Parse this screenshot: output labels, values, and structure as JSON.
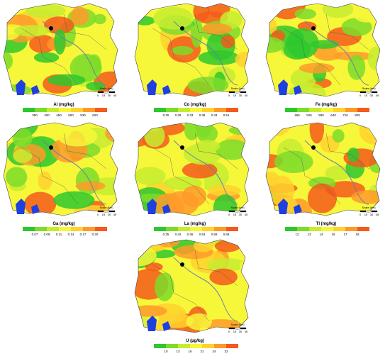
{
  "panels": [
    {
      "legend": "Al (mg/kg)",
      "ticks": [
        "350",
        "400",
        "450",
        "500",
        "530",
        "620"
      ],
      "scale_title": "Scale (km)",
      "scale_ticks": [
        "0",
        "15",
        "30",
        "45"
      ]
    },
    {
      "legend": "Co (mg/kg)",
      "ticks": [
        "0.25",
        "0.29",
        "0.33",
        "0.38",
        "0.43",
        "0.51"
      ],
      "scale_title": "Scale (km)",
      "scale_ticks": [
        "0",
        "15",
        "30",
        "45"
      ]
    },
    {
      "legend": "Fe (mg/kg)",
      "ticks": [
        "465",
        "525",
        "580",
        "640",
        "710",
        "825"
      ],
      "scale_title": "Scale (km)",
      "scale_ticks": [
        "0",
        "15",
        "30",
        "45"
      ]
    },
    {
      "legend": "Ga (mg/kg)",
      "ticks": [
        "0.07",
        "0.09",
        "0.11",
        "0.14",
        "0.17",
        "0.20"
      ],
      "scale_title": "Scale (km)",
      "scale_ticks": [
        "0",
        "15",
        "30",
        "45"
      ]
    },
    {
      "legend": "La (mg/kg)",
      "ticks": [
        "0.35",
        "0.42",
        "0.46",
        "0.53",
        "0.59",
        "0.69"
      ],
      "scale_title": "Scale (km)",
      "scale_ticks": [
        "0",
        "15",
        "30",
        "45"
      ]
    },
    {
      "legend": "Tl (mg/kg)",
      "ticks": [
        "12",
        "13",
        "14",
        "15",
        "17",
        "18"
      ],
      "scale_title": "Scale (km)",
      "scale_ticks": [
        "0",
        "15",
        "30",
        "45"
      ]
    },
    {
      "legend": "U (µg/kg)",
      "ticks": [
        "10",
        "13",
        "16",
        "21",
        "24",
        "32"
      ],
      "scale_title": "Scale (km)",
      "scale_ticks": [
        "0",
        "15",
        "30",
        "45"
      ]
    }
  ]
}
